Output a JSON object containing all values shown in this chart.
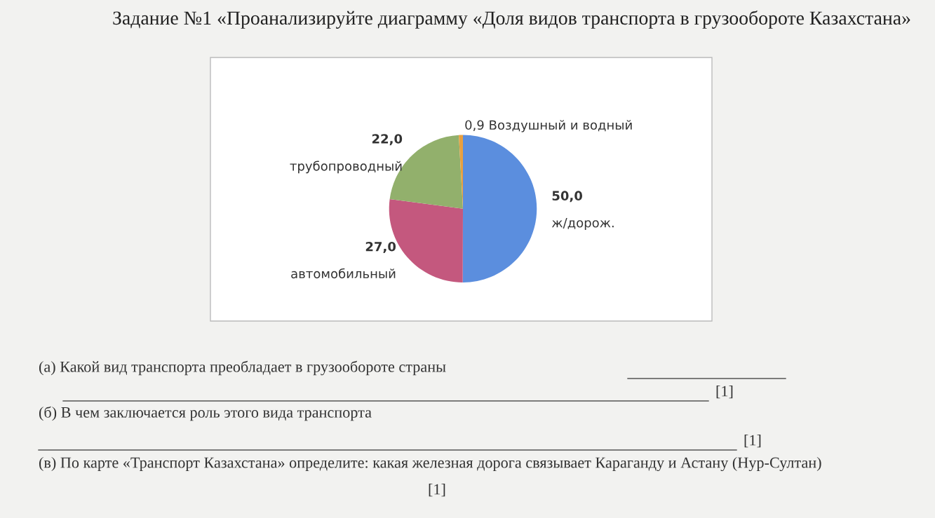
{
  "chart_data": {
    "type": "pie",
    "title": "Задание №1 «Проанализируйте диаграмму «Доля видов транспорта в грузообороте Казахстана»",
    "categories": [
      "ж/дорож.",
      "автомобильный",
      "трубопроводный",
      "Воздушный и водный"
    ],
    "values": [
      50.0,
      27.0,
      22.0,
      0.9
    ],
    "value_labels": [
      "50,0",
      "27,0",
      "22,0",
      "0,9"
    ],
    "colors": [
      "#5b8ede",
      "#c4587e",
      "#92b06c",
      "#e8a040"
    ],
    "legend": false,
    "annotations": [
      "(а) Какой вид транспорта преобладает в грузообороте страны",
      "[1]",
      "(б) В чем заключается роль этого вида транспорта",
      "[1]",
      "(в) По карте «Транспорт Казахстана» определите: какая железная дорога связывает Караганду и Астану (Нур-Султан)",
      "[1]"
    ]
  }
}
